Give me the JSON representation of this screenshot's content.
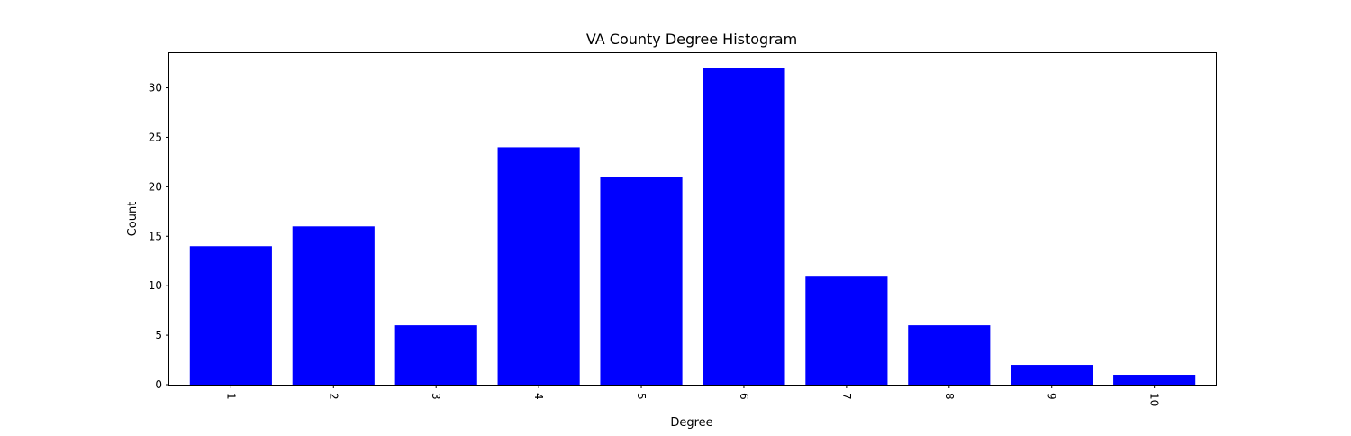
{
  "chart_data": {
    "type": "bar",
    "title": "VA County Degree Histogram",
    "xlabel": "Degree",
    "ylabel": "Count",
    "categories": [
      "1",
      "2",
      "3",
      "4",
      "5",
      "6",
      "7",
      "8",
      "9",
      "10"
    ],
    "values": [
      14,
      16,
      6,
      24,
      21,
      32,
      11,
      6,
      2,
      1
    ],
    "ylim": [
      0,
      33.6
    ],
    "yticks": [
      0,
      5,
      10,
      15,
      20,
      25,
      30
    ],
    "grid": false,
    "legend": "none",
    "colors": {
      "bar": "#0000ff",
      "axis": "#000000",
      "background": "#ffffff"
    }
  }
}
